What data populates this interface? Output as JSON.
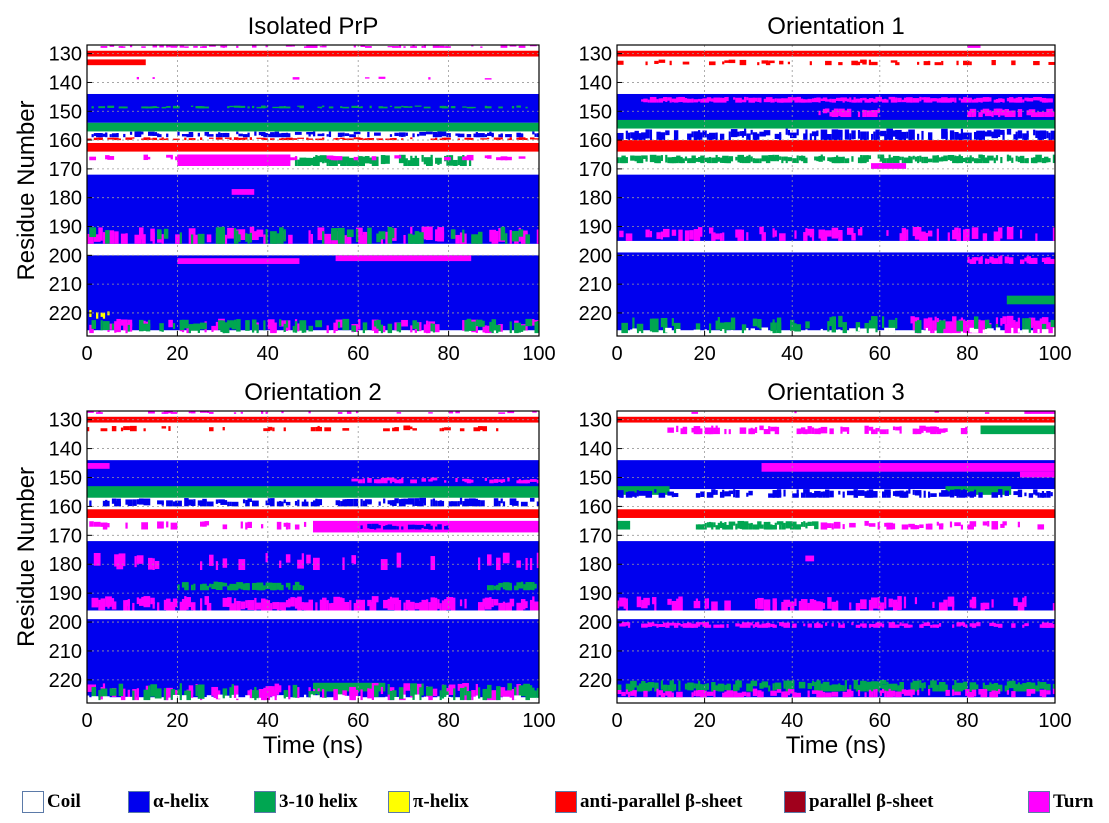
{
  "chart_data": [
    {
      "type": "heatmap",
      "title": "Isolated PrP",
      "xlabel": "",
      "ylabel": "Residue Number",
      "xlim": [
        0,
        100
      ],
      "ylim": [
        127,
        228
      ],
      "xticks": [
        "0",
        "20",
        "40",
        "60",
        "80",
        "100"
      ],
      "yticks": [
        "130",
        "140",
        "150",
        "160",
        "170",
        "180",
        "190",
        "200",
        "210",
        "220"
      ],
      "grid": true,
      "bands": [
        {
          "r": [
            127,
            128
          ],
          "c": "turn",
          "frac": 0.3
        },
        {
          "r": [
            129,
            131
          ],
          "c": "antiparallel"
        },
        {
          "r": [
            132,
            134
          ],
          "c": "antiparallel",
          "x": [
            0,
            13
          ]
        },
        {
          "r": [
            138,
            139
          ],
          "c": "turn",
          "frac": 0.03
        },
        {
          "r": [
            144,
            154
          ],
          "c": "helix"
        },
        {
          "r": [
            148,
            149
          ],
          "c": "helix310",
          "frac": 0.35
        },
        {
          "r": [
            154,
            157
          ],
          "c": "helix310"
        },
        {
          "r": [
            157,
            159
          ],
          "c": "helix",
          "frac": 0.5
        },
        {
          "r": [
            159,
            160
          ],
          "c": "antiparallel",
          "frac": 0.4
        },
        {
          "r": [
            161,
            164
          ],
          "c": "antiparallel"
        },
        {
          "r": [
            165,
            169
          ],
          "c": "turn",
          "x": [
            20,
            45
          ]
        },
        {
          "r": [
            165,
            169
          ],
          "c": "helix310",
          "x": [
            45,
            85
          ],
          "frac": 0.7
        },
        {
          "r": [
            165,
            167
          ],
          "c": "turn",
          "frac": 0.2
        },
        {
          "r": [
            172,
            196
          ],
          "c": "helix"
        },
        {
          "r": [
            177,
            179
          ],
          "c": "turn",
          "x": [
            32,
            37
          ]
        },
        {
          "r": [
            190,
            196
          ],
          "c": "turn",
          "frac": 0.35
        },
        {
          "r": [
            190,
            196
          ],
          "c": "helix310",
          "frac": 0.2
        },
        {
          "r": [
            200,
            226
          ],
          "c": "helix"
        },
        {
          "r": [
            201,
            203
          ],
          "c": "turn",
          "x": [
            20,
            47
          ]
        },
        {
          "r": [
            200,
            202
          ],
          "c": "turn",
          "x": [
            55,
            85
          ]
        },
        {
          "r": [
            219,
            222
          ],
          "c": "pihelix",
          "x": [
            0,
            5
          ],
          "frac": 0.5
        },
        {
          "r": [
            222,
            227
          ],
          "c": "turn",
          "frac": 0.3
        },
        {
          "r": [
            222,
            227
          ],
          "c": "helix310",
          "frac": 0.3
        },
        {
          "r": [
            226,
            228
          ],
          "c": "coil",
          "frac": 0.4
        }
      ]
    },
    {
      "type": "heatmap",
      "title": "Orientation 1",
      "xlabel": "",
      "ylabel": "",
      "xlim": [
        0,
        100
      ],
      "ylim": [
        127,
        228
      ],
      "xticks": [
        "0",
        "20",
        "40",
        "60",
        "80",
        "100"
      ],
      "yticks": [
        "130",
        "140",
        "150",
        "160",
        "170",
        "180",
        "190",
        "200",
        "210",
        "220"
      ],
      "grid": true,
      "bands": [
        {
          "r": [
            127,
            128
          ],
          "c": "turn",
          "x": [
            80,
            83
          ]
        },
        {
          "r": [
            129,
            131
          ],
          "c": "antiparallel"
        },
        {
          "r": [
            132,
            134
          ],
          "c": "antiparallel",
          "frac": 0.15
        },
        {
          "r": [
            144,
            154
          ],
          "c": "helix"
        },
        {
          "r": [
            145,
            147
          ],
          "c": "turn",
          "x": [
            5,
            100
          ],
          "frac": 0.85
        },
        {
          "r": [
            149,
            152
          ],
          "c": "turn",
          "x": [
            45,
            60
          ],
          "frac": 0.6
        },
        {
          "r": [
            149,
            152
          ],
          "c": "turn",
          "x": [
            80,
            100
          ],
          "frac": 0.6
        },
        {
          "r": [
            153,
            156
          ],
          "c": "helix310"
        },
        {
          "r": [
            156,
            160
          ],
          "c": "helix",
          "frac": 0.6
        },
        {
          "r": [
            160,
            164
          ],
          "c": "antiparallel"
        },
        {
          "r": [
            165,
            168
          ],
          "c": "helix310",
          "frac": 0.75
        },
        {
          "r": [
            168,
            170
          ],
          "c": "turn",
          "x": [
            58,
            66
          ]
        },
        {
          "r": [
            172,
            195
          ],
          "c": "helix"
        },
        {
          "r": [
            190,
            195
          ],
          "c": "turn",
          "frac": 0.35
        },
        {
          "r": [
            199,
            226
          ],
          "c": "helix"
        },
        {
          "r": [
            200,
            203
          ],
          "c": "turn",
          "x": [
            80,
            100
          ],
          "frac": 0.6
        },
        {
          "r": [
            214,
            217
          ],
          "c": "helix310",
          "x": [
            89,
            100
          ]
        },
        {
          "r": [
            221,
            227
          ],
          "c": "turn",
          "x": [
            67,
            100
          ],
          "frac": 0.8
        },
        {
          "r": [
            221,
            227
          ],
          "c": "helix310",
          "frac": 0.25
        },
        {
          "r": [
            225,
            228
          ],
          "c": "coil",
          "frac": 0.3
        }
      ]
    },
    {
      "type": "heatmap",
      "title": "Orientation 2",
      "xlabel": "Time (ns)",
      "ylabel": "Residue Number",
      "xlim": [
        0,
        100
      ],
      "ylim": [
        127,
        228
      ],
      "xticks": [
        "0",
        "20",
        "40",
        "60",
        "80",
        "100"
      ],
      "yticks": [
        "130",
        "140",
        "150",
        "160",
        "170",
        "180",
        "190",
        "200",
        "210",
        "220"
      ],
      "grid": true,
      "bands": [
        {
          "r": [
            127,
            128
          ],
          "c": "turn",
          "frac": 0.15
        },
        {
          "r": [
            129,
            131
          ],
          "c": "antiparallel"
        },
        {
          "r": [
            132,
            134
          ],
          "c": "antiparallel",
          "frac": 0.15
        },
        {
          "r": [
            144,
            154
          ],
          "c": "helix"
        },
        {
          "r": [
            145,
            147
          ],
          "c": "turn",
          "x": [
            0,
            5
          ]
        },
        {
          "r": [
            150,
            152
          ],
          "c": "turn",
          "x": [
            55,
            100
          ],
          "frac": 0.4
        },
        {
          "r": [
            153,
            157
          ],
          "c": "helix310"
        },
        {
          "r": [
            157,
            160
          ],
          "c": "helix",
          "frac": 0.5
        },
        {
          "r": [
            161,
            164
          ],
          "c": "antiparallel"
        },
        {
          "r": [
            165,
            169
          ],
          "c": "turn",
          "x": [
            50,
            100
          ]
        },
        {
          "r": [
            166,
            168
          ],
          "c": "helix",
          "x": [
            60,
            80
          ],
          "frac": 0.5
        },
        {
          "r": [
            165,
            168
          ],
          "c": "turn",
          "x": [
            0,
            50
          ],
          "frac": 0.2
        },
        {
          "r": [
            172,
            196
          ],
          "c": "helix"
        },
        {
          "r": [
            176,
            182
          ],
          "c": "turn",
          "frac": 0.2
        },
        {
          "r": [
            186,
            189
          ],
          "c": "helix310",
          "x": [
            20,
            48
          ],
          "frac": 0.7
        },
        {
          "r": [
            186,
            189
          ],
          "c": "helix310",
          "x": [
            88,
            100
          ],
          "frac": 0.7
        },
        {
          "r": [
            191,
            196
          ],
          "c": "turn",
          "frac": 0.6
        },
        {
          "r": [
            199,
            226
          ],
          "c": "helix"
        },
        {
          "r": [
            221,
            224
          ],
          "c": "helix310",
          "x": [
            50,
            66
          ]
        },
        {
          "r": [
            221,
            227
          ],
          "c": "turn",
          "frac": 0.3
        },
        {
          "r": [
            221,
            227
          ],
          "c": "helix310",
          "frac": 0.3
        },
        {
          "r": [
            225,
            228
          ],
          "c": "coil",
          "frac": 0.3
        }
      ]
    },
    {
      "type": "heatmap",
      "title": "Orientation 3",
      "xlabel": "Time (ns)",
      "ylabel": "",
      "xlim": [
        0,
        100
      ],
      "ylim": [
        127,
        228
      ],
      "xticks": [
        "0",
        "20",
        "40",
        "60",
        "80",
        "100"
      ],
      "yticks": [
        "130",
        "140",
        "150",
        "160",
        "170",
        "180",
        "190",
        "200",
        "210",
        "220"
      ],
      "grid": true,
      "bands": [
        {
          "r": [
            127,
            128
          ],
          "c": "turn",
          "x": [
            93,
            100
          ]
        },
        {
          "r": [
            127,
            128
          ],
          "c": "turn",
          "frac": 0.05
        },
        {
          "r": [
            129,
            131
          ],
          "c": "antiparallel"
        },
        {
          "r": [
            132,
            135
          ],
          "c": "turn",
          "x": [
            10,
            80
          ],
          "frac": 0.5
        },
        {
          "r": [
            132,
            135
          ],
          "c": "helix310",
          "x": [
            83,
            100
          ]
        },
        {
          "r": [
            144,
            154
          ],
          "c": "helix"
        },
        {
          "r": [
            145,
            148
          ],
          "c": "turn",
          "x": [
            33,
            100
          ]
        },
        {
          "r": [
            148,
            150
          ],
          "c": "turn",
          "x": [
            92,
            100
          ]
        },
        {
          "r": [
            153,
            156
          ],
          "c": "helix310",
          "x": [
            0,
            12
          ]
        },
        {
          "r": [
            153,
            156
          ],
          "c": "helix310",
          "x": [
            75,
            90
          ]
        },
        {
          "r": [
            154,
            157
          ],
          "c": "helix",
          "frac": 0.5
        },
        {
          "r": [
            161,
            164
          ],
          "c": "antiparallel"
        },
        {
          "r": [
            165,
            168
          ],
          "c": "helix310",
          "x": [
            0,
            3
          ]
        },
        {
          "r": [
            165,
            168
          ],
          "c": "helix310",
          "x": [
            18,
            46
          ],
          "frac": 0.8
        },
        {
          "r": [
            165,
            168
          ],
          "c": "turn",
          "x": [
            46,
            100
          ],
          "frac": 0.3
        },
        {
          "r": [
            172,
            196
          ],
          "c": "helix"
        },
        {
          "r": [
            177,
            179
          ],
          "c": "turn",
          "x": [
            43,
            45
          ]
        },
        {
          "r": [
            191,
            196
          ],
          "c": "turn",
          "frac": 0.3
        },
        {
          "r": [
            199,
            226
          ],
          "c": "helix"
        },
        {
          "r": [
            200,
            202
          ],
          "c": "turn",
          "frac": 0.5
        },
        {
          "r": [
            220,
            224
          ],
          "c": "helix310",
          "frac": 0.6
        },
        {
          "r": [
            223,
            226
          ],
          "c": "turn",
          "frac": 0.45
        }
      ]
    }
  ],
  "colors": {
    "coil": "#ffffff",
    "helix": "#0000ee",
    "helix310": "#00a651",
    "pihelix": "#ffff00",
    "antiparallel": "#ff0000",
    "parallel": "#a0001c",
    "turn": "#ff00ff",
    "grid": "#9a9a9a"
  },
  "legend": {
    "items": [
      {
        "label": "Coil",
        "key": "coil"
      },
      {
        "label": "α-helix",
        "key": "helix"
      },
      {
        "label": "3-10 helix",
        "key": "helix310"
      },
      {
        "label": "π-helix",
        "key": "pihelix"
      },
      {
        "label": "anti-parallel β-sheet",
        "key": "antiparallel"
      },
      {
        "label": "parallel β-sheet",
        "key": "parallel"
      },
      {
        "label": "Turn",
        "key": "turn"
      }
    ]
  }
}
